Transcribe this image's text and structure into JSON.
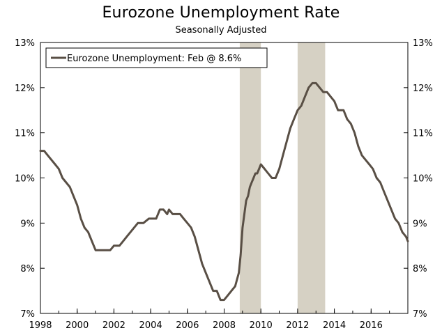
{
  "chart_data": {
    "type": "line",
    "title": "Eurozone Unemployment Rate",
    "subtitle": "Seasonally Adjusted",
    "xlabel": "",
    "ylabel": "",
    "xlim": [
      1998,
      2018
    ],
    "ylim": [
      7,
      13
    ],
    "y_ticks": [
      7,
      8,
      9,
      10,
      11,
      12,
      13
    ],
    "y_tick_labels": [
      "7%",
      "8%",
      "9%",
      "10%",
      "11%",
      "12%",
      "13%"
    ],
    "x_ticks": [
      1998,
      2000,
      2002,
      2004,
      2006,
      2008,
      2010,
      2012,
      2014,
      2016
    ],
    "x_tick_labels": [
      "1998",
      "2000",
      "2002",
      "2004",
      "2006",
      "2008",
      "2010",
      "2012",
      "2014",
      "2016"
    ],
    "dual_y_axis": true,
    "grid": false,
    "legend_position": "top-left",
    "shaded_periods": [
      {
        "start": 2008.85,
        "end": 2010.0
      },
      {
        "start": 2012.0,
        "end": 2013.5
      }
    ],
    "series": [
      {
        "name": "Eurozone Unemployment: Feb @ 8.6%",
        "color": "#594f45",
        "x": [
          1998.0,
          1998.2,
          1998.4,
          1998.6,
          1998.8,
          1999.0,
          1999.2,
          1999.4,
          1999.6,
          1999.8,
          2000.0,
          2000.2,
          2000.4,
          2000.6,
          2000.8,
          2001.0,
          2001.3,
          2001.6,
          2001.8,
          2002.0,
          2002.3,
          2002.5,
          2002.7,
          2002.9,
          2003.1,
          2003.3,
          2003.6,
          2003.9,
          2004.1,
          2004.3,
          2004.5,
          2004.7,
          2004.9,
          2005.0,
          2005.2,
          2005.4,
          2005.6,
          2005.8,
          2006.0,
          2006.2,
          2006.4,
          2006.6,
          2006.8,
          2007.0,
          2007.2,
          2007.4,
          2007.6,
          2007.8,
          2008.0,
          2008.2,
          2008.4,
          2008.6,
          2008.8,
          2008.9,
          2009.0,
          2009.1,
          2009.2,
          2009.3,
          2009.4,
          2009.5,
          2009.6,
          2009.7,
          2009.8,
          2009.9,
          2010.0,
          2010.2,
          2010.4,
          2010.6,
          2010.8,
          2011.0,
          2011.2,
          2011.4,
          2011.6,
          2011.8,
          2012.0,
          2012.2,
          2012.4,
          2012.6,
          2012.8,
          2013.0,
          2013.2,
          2013.4,
          2013.6,
          2013.8,
          2014.0,
          2014.1,
          2014.2,
          2014.3,
          2014.5,
          2014.7,
          2014.9,
          2015.1,
          2015.3,
          2015.5,
          2015.7,
          2015.9,
          2016.1,
          2016.3,
          2016.5,
          2016.7,
          2016.9,
          2017.1,
          2017.3,
          2017.5,
          2017.7,
          2017.9,
          2018.0
        ],
        "y": [
          10.6,
          10.6,
          10.5,
          10.4,
          10.3,
          10.2,
          10.0,
          9.9,
          9.8,
          9.6,
          9.4,
          9.1,
          8.9,
          8.8,
          8.6,
          8.4,
          8.4,
          8.4,
          8.4,
          8.5,
          8.5,
          8.6,
          8.7,
          8.8,
          8.9,
          9.0,
          9.0,
          9.1,
          9.1,
          9.1,
          9.3,
          9.3,
          9.2,
          9.3,
          9.2,
          9.2,
          9.2,
          9.1,
          9.0,
          8.9,
          8.7,
          8.4,
          8.1,
          7.9,
          7.7,
          7.5,
          7.5,
          7.3,
          7.3,
          7.4,
          7.5,
          7.6,
          7.9,
          8.3,
          8.9,
          9.2,
          9.5,
          9.6,
          9.8,
          9.9,
          10.0,
          10.1,
          10.1,
          10.2,
          10.3,
          10.2,
          10.1,
          10.0,
          10.0,
          10.2,
          10.5,
          10.8,
          11.1,
          11.3,
          11.5,
          11.6,
          11.8,
          12.0,
          12.1,
          12.1,
          12.0,
          11.9,
          11.9,
          11.8,
          11.7,
          11.6,
          11.5,
          11.5,
          11.5,
          11.3,
          11.2,
          11.0,
          10.7,
          10.5,
          10.4,
          10.3,
          10.2,
          10.0,
          9.9,
          9.7,
          9.5,
          9.3,
          9.1,
          9.0,
          8.8,
          8.7,
          8.6
        ]
      }
    ],
    "colors": {
      "line": "#594f45",
      "shading": "#d6d1c4",
      "axis": "#000000"
    }
  }
}
